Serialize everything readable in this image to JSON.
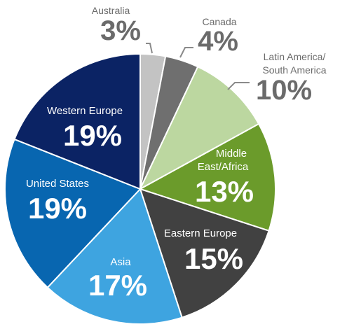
{
  "chart_data": {
    "type": "pie",
    "title": "",
    "slices": [
      {
        "label": "Australia",
        "value": 3,
        "display": "3%",
        "color": "#c3c3c3"
      },
      {
        "label": "Canada",
        "value": 4,
        "display": "4%",
        "color": "#6f6f6f"
      },
      {
        "label": "Latin America/ South America",
        "value": 10,
        "display": "10%",
        "color": "#bcd7a0"
      },
      {
        "label": "Middle East/Africa",
        "value": 13,
        "display": "13%",
        "color": "#6b9b2b"
      },
      {
        "label": "Eastern Europe",
        "value": 15,
        "display": "15%",
        "color": "#414141"
      },
      {
        "label": "Asia",
        "value": 17,
        "display": "17%",
        "color": "#3ea4e0"
      },
      {
        "label": "United States",
        "value": 19,
        "display": "19%",
        "color": "#0866b0"
      },
      {
        "label": "Western Europe",
        "value": 19,
        "display": "19%",
        "color": "#0b2364"
      }
    ],
    "start_angle": "12 o'clock",
    "direction": "clockwise",
    "legend": "none (direct labels)",
    "colors": {
      "outside_label_color": "#6b6b6b",
      "inside_label_color": "#ffffff"
    }
  }
}
